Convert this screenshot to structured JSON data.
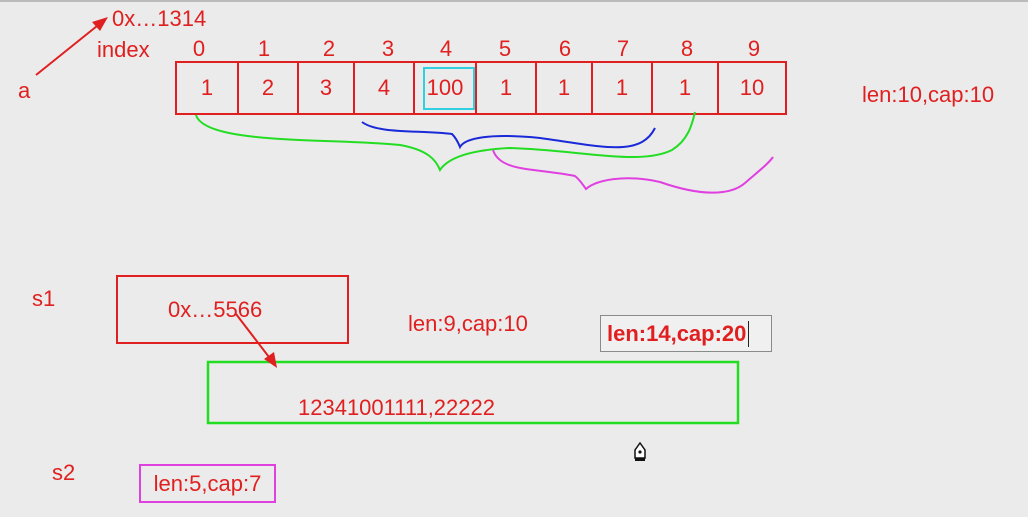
{
  "array_a": {
    "var_label": "a",
    "address": "0x…1314",
    "index_label": "index",
    "indices": [
      "0",
      "1",
      "2",
      "3",
      "4",
      "5",
      "6",
      "7",
      "8",
      "9"
    ],
    "values": [
      "1",
      "2",
      "3",
      "4",
      "100",
      "1",
      "1",
      "1",
      "1",
      "10"
    ],
    "len_cap": "len:10,cap:10"
  },
  "slice_s1": {
    "var_label": "s1",
    "pointer": "0x…5566",
    "len_cap": "len:9,cap:10",
    "edited_len_cap": "len:14,cap:20",
    "backing_contents": "12341001111,22222"
  },
  "slice_s2": {
    "var_label": "s2",
    "len_cap": "len:5,cap:7"
  },
  "colors": {
    "red": "#e02020",
    "green": "#22dd22",
    "blue": "#1a2ad8",
    "magenta": "#e040e0",
    "cyan": "#30d0e0"
  },
  "icons": [
    "pen-cursor-icon"
  ]
}
